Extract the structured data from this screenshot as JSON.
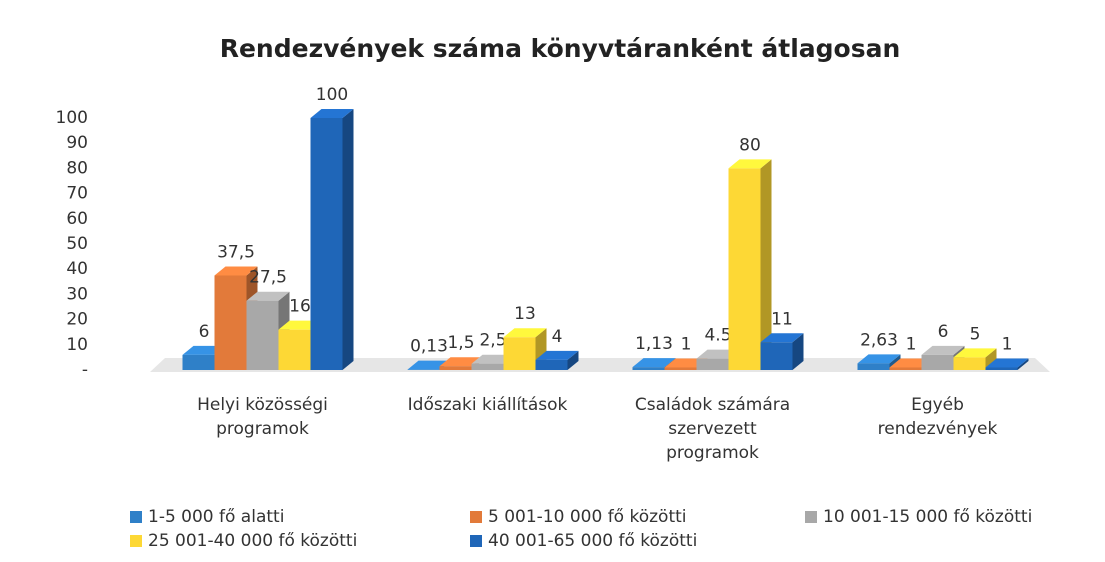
{
  "chart_data": {
    "type": "bar3d",
    "title": "Rendezvények száma könyvtáranként átlagosan",
    "categories": [
      "Helyi közösségi programok",
      "Időszaki kiállítások",
      "Családok számára szervezett programok",
      "Egyéb rendezvények"
    ],
    "series": [
      {
        "name": "1-5 000 fő alatti",
        "color": "#2f80c8",
        "values": [
          6,
          0.13,
          1.13,
          2.63
        ],
        "value_labels": [
          "6",
          "0,13",
          "1,13",
          "2,63"
        ]
      },
      {
        "name": "5 001-10 000 fő közötti",
        "color": "#e27a3a",
        "values": [
          37.5,
          1.5,
          1,
          1
        ],
        "value_labels": [
          "37,5",
          "1,5",
          "1",
          "1"
        ]
      },
      {
        "name": "10 001-15 000 fő közötti",
        "color": "#a8a8a8",
        "values": [
          27.5,
          2.5,
          4.5,
          6
        ],
        "value_labels": [
          "27,5",
          "2,5",
          "4.5",
          "6"
        ]
      },
      {
        "name": "25 001-40 000 fő közötti",
        "color": "#fdd835",
        "values": [
          16,
          13,
          80,
          5
        ]
      },
      {
        "name": "40 001-65 000 fő közötti",
        "color": "#1f66b8",
        "values": [
          100,
          4,
          11,
          1
        ]
      }
    ],
    "ylim": [
      0,
      100
    ],
    "yticks": [
      {
        "value": 0,
        "label": "-"
      },
      10,
      20,
      30,
      40,
      50,
      60,
      70,
      80,
      90,
      100
    ]
  }
}
